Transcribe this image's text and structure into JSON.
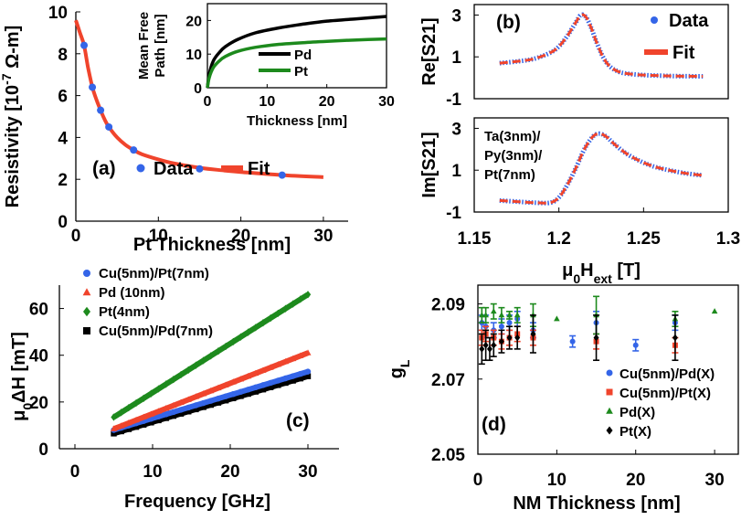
{
  "chart_data": [
    {
      "id": "a",
      "type": "line",
      "panel_label": "(a)",
      "xlabel": "Pt Thickness [nm]",
      "ylabel": "Resistivity [10-7 Ω-m]",
      "ylabel_parts": {
        "pre": "Resistivity [10",
        "sup": "-7",
        "post": " Ω-m]"
      },
      "xlim": [
        0,
        33
      ],
      "ylim": [
        0,
        10
      ],
      "x_ticks": [
        0,
        10,
        20,
        30
      ],
      "y_ticks": [
        0,
        2,
        4,
        6,
        8,
        10
      ],
      "legend": [
        "Data",
        "Fit"
      ],
      "series": [
        {
          "name": "Data",
          "kind": "scatter",
          "color": "#3465e8",
          "x": [
            1,
            2,
            3,
            4,
            7,
            15,
            25
          ],
          "y": [
            8.4,
            6.4,
            5.3,
            4.5,
            3.4,
            2.5,
            2.2
          ]
        },
        {
          "name": "Fit",
          "kind": "line",
          "color": "#f0442c",
          "x": [
            0,
            0.5,
            1,
            1.5,
            2,
            2.5,
            3,
            3.5,
            4,
            5,
            6,
            7,
            8,
            10,
            12,
            15,
            18,
            20,
            25,
            30
          ],
          "y": [
            9.6,
            9.0,
            8.4,
            7.3,
            6.4,
            5.8,
            5.3,
            4.85,
            4.5,
            4.0,
            3.65,
            3.4,
            3.2,
            2.95,
            2.75,
            2.55,
            2.42,
            2.35,
            2.2,
            2.1
          ]
        }
      ]
    },
    {
      "id": "a-inset",
      "type": "line",
      "xlabel": "Thickness [nm]",
      "ylabel_lines": [
        "Mean Free",
        "Path [nm]"
      ],
      "xlim": [
        0,
        30
      ],
      "ylim": [
        0,
        25
      ],
      "x_ticks": [
        0,
        10,
        20,
        30
      ],
      "y_ticks": [
        0,
        10,
        20
      ],
      "series": [
        {
          "name": "Pd",
          "color": "#000000",
          "x": [
            0,
            0.3,
            1,
            2,
            3,
            5,
            8,
            12,
            16,
            20,
            25,
            30
          ],
          "y": [
            0,
            4,
            8,
            10.5,
            12.2,
            14.3,
            16.3,
            17.8,
            18.9,
            19.8,
            20.5,
            21.2
          ]
        },
        {
          "name": "Pt",
          "color": "#1d8a1d",
          "x": [
            0,
            0.3,
            1,
            2,
            3,
            5,
            8,
            12,
            16,
            20,
            25,
            30
          ],
          "y": [
            0,
            3,
            6,
            8,
            9.3,
            10.8,
            12.0,
            12.9,
            13.4,
            13.8,
            14.2,
            14.5
          ]
        }
      ]
    },
    {
      "id": "b",
      "type": "line",
      "panel_label": "(b)",
      "ylabel": "Re[S21]",
      "xlim": [
        1.15,
        1.3
      ],
      "ylim": [
        -1,
        3.5
      ],
      "y_ticks": [
        -1,
        1,
        3
      ],
      "legend": [
        "Data",
        "Fit"
      ],
      "series": [
        {
          "name": "Data",
          "kind": "scatter",
          "color": "#3465e8",
          "x": [
            1.165,
            1.175,
            1.185,
            1.195,
            1.2,
            1.205,
            1.21,
            1.213,
            1.216,
            1.219,
            1.222,
            1.226,
            1.23,
            1.235,
            1.24,
            1.25,
            1.26,
            1.27,
            1.285
          ],
          "y": [
            0.7,
            0.78,
            0.9,
            1.2,
            1.5,
            2.0,
            2.65,
            3.0,
            2.9,
            2.4,
            1.75,
            1.0,
            0.55,
            0.3,
            0.2,
            0.13,
            0.1,
            0.08,
            0.07
          ]
        },
        {
          "name": "Fit",
          "kind": "line",
          "color": "#f0442c",
          "x": [
            1.165,
            1.175,
            1.185,
            1.195,
            1.2,
            1.205,
            1.21,
            1.213,
            1.216,
            1.219,
            1.222,
            1.226,
            1.23,
            1.235,
            1.24,
            1.25,
            1.26,
            1.27,
            1.285
          ],
          "y": [
            0.7,
            0.78,
            0.9,
            1.2,
            1.5,
            2.0,
            2.65,
            3.0,
            2.9,
            2.4,
            1.75,
            1.0,
            0.55,
            0.3,
            0.2,
            0.13,
            0.1,
            0.08,
            0.07
          ]
        }
      ]
    },
    {
      "id": "b-lower",
      "type": "line",
      "ylabel": "Im[S21]",
      "annotation_lines": [
        "Ta(3nm)/",
        "Py(3nm)/",
        "Pt(7nm)"
      ],
      "xlabel": "μ0Hext [T]",
      "xlabel_parts": {
        "pre": "μ",
        "sub1": "0",
        "mid": "H",
        "sub2": "ext",
        "post": " [T]"
      },
      "xlim": [
        1.15,
        1.3
      ],
      "ylim": [
        -1,
        3.5
      ],
      "x_ticks": [
        1.15,
        1.2,
        1.25,
        1.3
      ],
      "x_tick_labels": [
        "1.15",
        "1.2",
        "1.25",
        "1.3"
      ],
      "y_ticks": [
        -1,
        1,
        3
      ],
      "series": [
        {
          "name": "Data",
          "kind": "scatter",
          "color": "#3465e8",
          "x": [
            1.165,
            1.175,
            1.185,
            1.195,
            1.2,
            1.205,
            1.21,
            1.215,
            1.22,
            1.224,
            1.228,
            1.232,
            1.238,
            1.245,
            1.255,
            1.265,
            1.275,
            1.285
          ],
          "y": [
            -0.45,
            -0.5,
            -0.55,
            -0.55,
            -0.3,
            0.3,
            1.1,
            2.0,
            2.6,
            2.75,
            2.6,
            2.3,
            1.9,
            1.55,
            1.2,
            1.0,
            0.85,
            0.75
          ]
        },
        {
          "name": "Fit",
          "kind": "line",
          "color": "#f0442c",
          "x": [
            1.165,
            1.175,
            1.185,
            1.195,
            1.2,
            1.205,
            1.21,
            1.215,
            1.22,
            1.224,
            1.228,
            1.232,
            1.238,
            1.245,
            1.255,
            1.265,
            1.275,
            1.285
          ],
          "y": [
            -0.45,
            -0.5,
            -0.55,
            -0.55,
            -0.3,
            0.3,
            1.1,
            2.0,
            2.6,
            2.75,
            2.6,
            2.3,
            1.9,
            1.55,
            1.2,
            1.0,
            0.85,
            0.75
          ]
        }
      ]
    },
    {
      "id": "c",
      "type": "scatter",
      "panel_label": "(c)",
      "xlabel": "Frequency [GHz]",
      "ylabel": "μ0ΔH [mT]",
      "ylabel_parts": {
        "pre": "μ",
        "sub": "0",
        "post": "ΔH [mT]"
      },
      "xlim": [
        -2,
        34
      ],
      "ylim": [
        0,
        70
      ],
      "x_ticks": [
        0,
        10,
        20,
        30
      ],
      "y_ticks": [
        0,
        20,
        40,
        60
      ],
      "series": [
        {
          "name": "Cu(5nm)/Pt(7nm)",
          "color": "#3465e8",
          "marker": "circle",
          "x": [
            5,
            30
          ],
          "y": [
            8,
            33
          ]
        },
        {
          "name": "Pd (10nm)",
          "color": "#f0442c",
          "marker": "triangle",
          "x": [
            5,
            30
          ],
          "y": [
            8.5,
            41
          ]
        },
        {
          "name": "Pt(4nm)",
          "color": "#1d8a1d",
          "marker": "diamond",
          "x": [
            5,
            30
          ],
          "y": [
            13.5,
            66
          ]
        },
        {
          "name": "Cu(5nm)/Pd(7nm)",
          "color": "#000000",
          "marker": "square",
          "x": [
            5,
            30
          ],
          "y": [
            6.5,
            31
          ]
        }
      ]
    },
    {
      "id": "d",
      "type": "scatter",
      "panel_label": "(d)",
      "xlabel": "NM Thickness [nm]",
      "ylabel": "gL",
      "ylabel_parts": {
        "pre": "g",
        "sub": "L"
      },
      "xlim": [
        0,
        33
      ],
      "ylim": [
        2.05,
        2.095
      ],
      "x_ticks": [
        0,
        10,
        20,
        30
      ],
      "y_ticks": [
        2.05,
        2.07,
        2.09
      ],
      "y_tick_labels": [
        "2.05",
        "2.07",
        "2.09"
      ],
      "series": [
        {
          "name": "Cu(5nm)/Pd(X)",
          "color": "#3465e8",
          "marker": "circle",
          "x": [
            0.5,
            1,
            2,
            3,
            4,
            5,
            7,
            12,
            15,
            20,
            25
          ],
          "y": [
            2.085,
            2.084,
            2.083,
            2.084,
            2.085,
            2.086,
            2.083,
            2.08,
            2.085,
            2.079,
            2.085
          ],
          "err": [
            0.002,
            0.003,
            0.002,
            0.002,
            0.002,
            0.002,
            0.002,
            0.0015,
            0.003,
            0.0015,
            0.002
          ]
        },
        {
          "name": "Cu(5nm)/Pt(X)",
          "color": "#f0442c",
          "marker": "square",
          "x": [
            0.5,
            1,
            2,
            3,
            4,
            5,
            7,
            15,
            25
          ],
          "y": [
            2.081,
            2.082,
            2.081,
            2.08,
            2.081,
            2.082,
            2.081,
            2.08,
            2.079
          ],
          "err": [
            0.002,
            0.002,
            0.002,
            0.002,
            0.002,
            0.002,
            0.002,
            0.002,
            0.002
          ]
        },
        {
          "name": "Pd(X)",
          "color": "#1d8a1d",
          "marker": "triangle",
          "x": [
            0.5,
            1,
            2,
            3,
            4,
            5,
            7,
            10,
            15,
            25,
            30
          ],
          "y": [
            2.087,
            2.087,
            2.088,
            2.087,
            2.087,
            2.087,
            2.087,
            2.086,
            2.087,
            2.086,
            2.088
          ],
          "err": [
            0.002,
            0.002,
            0.002,
            0.002,
            0.001,
            0.002,
            0.003,
            0.0,
            0.005,
            0.002,
            0.0
          ]
        },
        {
          "name": "Pt(X)",
          "color": "#000000",
          "marker": "diamond",
          "x": [
            0.5,
            1,
            1.5,
            2,
            3,
            4,
            5,
            7,
            15,
            25
          ],
          "y": [
            2.078,
            2.079,
            2.078,
            2.079,
            2.08,
            2.081,
            2.081,
            2.082,
            2.081,
            2.081
          ],
          "err": [
            0.004,
            0.004,
            0.003,
            0.003,
            0.003,
            0.003,
            0.003,
            0.005,
            0.006,
            0.006
          ]
        }
      ]
    }
  ]
}
